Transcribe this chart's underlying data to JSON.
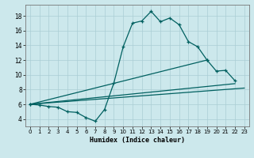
{
  "xlabel": "Humidex (Indice chaleur)",
  "bg_color": "#cce8ec",
  "grid_color": "#aacdd4",
  "line_color": "#006060",
  "xlim": [
    -0.5,
    23.5
  ],
  "ylim": [
    3.0,
    19.5
  ],
  "xticks": [
    0,
    1,
    2,
    3,
    4,
    5,
    6,
    7,
    8,
    9,
    10,
    11,
    12,
    13,
    14,
    15,
    16,
    17,
    18,
    19,
    20,
    21,
    22,
    23
  ],
  "yticks": [
    4,
    6,
    8,
    10,
    12,
    14,
    16,
    18
  ],
  "line1_x": [
    0,
    1,
    2,
    3,
    4,
    5,
    6,
    7,
    8,
    9,
    10,
    11,
    12,
    13,
    14,
    15,
    16,
    17,
    18,
    19
  ],
  "line1_y": [
    6.0,
    5.9,
    5.7,
    5.6,
    5.0,
    4.9,
    4.2,
    3.7,
    5.3,
    8.9,
    13.8,
    17.0,
    17.3,
    18.6,
    17.2,
    17.7,
    16.8,
    14.5,
    13.8,
    12.0
  ],
  "line2_x": [
    0,
    19,
    20,
    21,
    22
  ],
  "line2_y": [
    6.0,
    12.0,
    10.5,
    10.6,
    9.2
  ],
  "line3_x": [
    0,
    22
  ],
  "line3_y": [
    6.0,
    8.8
  ],
  "line4_x": [
    0,
    23
  ],
  "line4_y": [
    6.0,
    8.2
  ]
}
